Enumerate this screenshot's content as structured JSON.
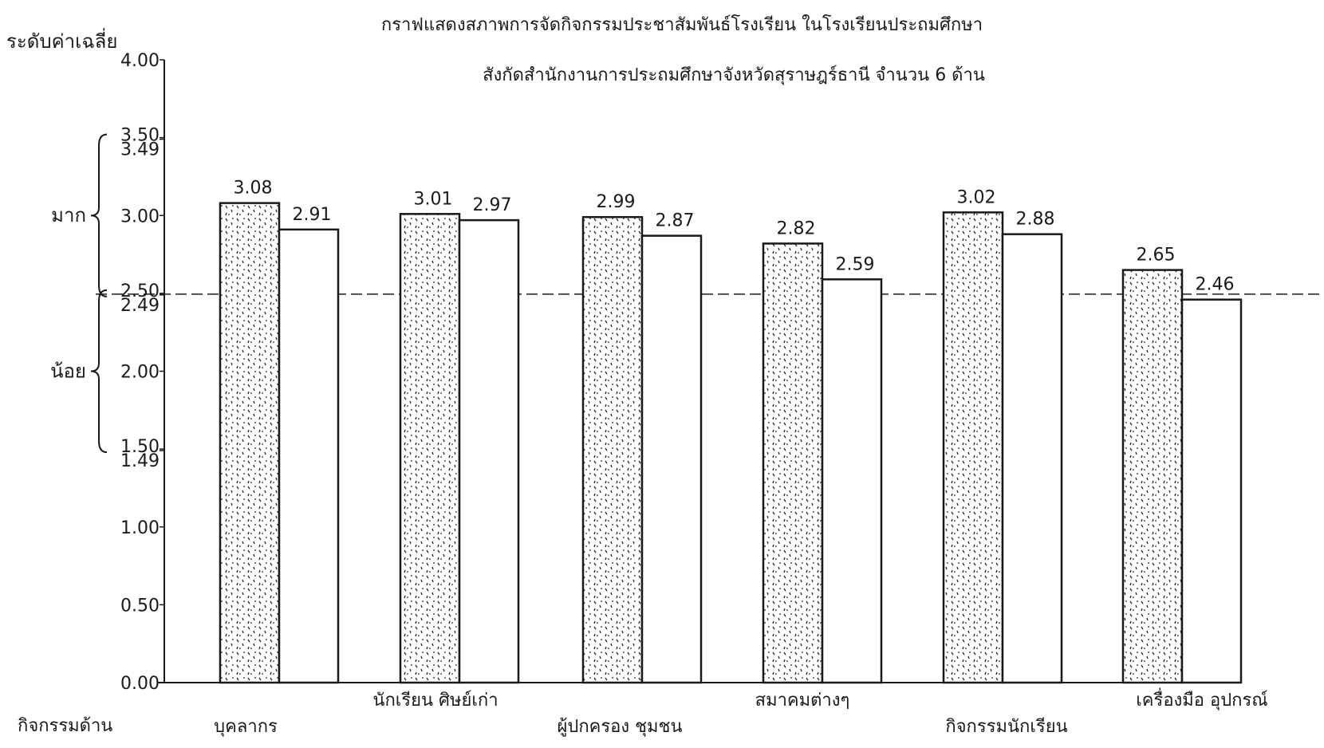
{
  "chart_data": {
    "type": "bar",
    "title": "กราฟแสดงสภาพการจัดกิจกรรมประชาสัมพันธ์โรงเรียน ในโรงเรียนประถมศึกษา",
    "subtitle": "สังกัดสำนักงานการประถมศึกษาจังหวัดสุราษฎร์ธานี จำนวน 6 ด้าน",
    "ylabel": "ระดับค่าเฉลี่ย",
    "xlabel": "กิจกรรมด้าน",
    "ylim": [
      0,
      4
    ],
    "yticks": [
      "0.00",
      "0.50",
      "1.00",
      "1.49",
      "1.50",
      "2.00",
      "2.49",
      "2.50",
      "3.00",
      "3.49",
      "3.50",
      "4.00"
    ],
    "ytick_values": [
      0,
      0.5,
      1.0,
      1.49,
      1.5,
      2.0,
      2.49,
      2.5,
      3.0,
      3.49,
      3.5,
      4.0
    ],
    "reference_line": 2.495,
    "level_labels": [
      {
        "label": "มาก",
        "range": [
          2.5,
          3.49
        ]
      },
      {
        "label": "น้อย",
        "range": [
          1.5,
          2.49
        ]
      }
    ],
    "categories": [
      "บุคลากร",
      "นักเรียน ศิษย์เก่า",
      "ผู้ปกครอง ชุมชน",
      "สมาคมต่างๆ",
      "กิจกรรมนักเรียน",
      "เครื่องมือ อุปกรณ์"
    ],
    "series": [
      {
        "values": [
          3.08,
          3.01,
          2.99,
          2.82,
          3.02,
          2.65
        ],
        "value_labels": [
          "3.08",
          "3.01",
          "2.99",
          "2.82",
          "3.02",
          "2.65"
        ],
        "fill": "stipple"
      },
      {
        "values": [
          2.91,
          2.97,
          2.87,
          2.59,
          2.88,
          2.46
        ],
        "value_labels": [
          "2.91",
          "2.97",
          "2.87",
          "2.59",
          "2.88",
          "2.46"
        ],
        "fill": "white"
      }
    ],
    "grid": false,
    "legend": "none"
  }
}
